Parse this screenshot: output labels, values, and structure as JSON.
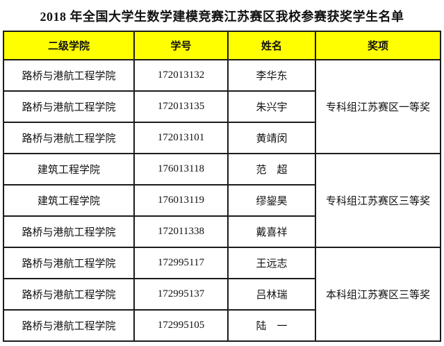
{
  "title": "2018 年全国大学生数学建模竞赛江苏赛区我校参赛获奖学生名单",
  "colors": {
    "header_bg": "#FFFF00",
    "border": "#1b1b1b",
    "text": "#111111"
  },
  "table": {
    "headers": [
      "二级学院",
      "学号",
      "姓名",
      "奖项"
    ],
    "rows": [
      {
        "college": "路桥与港航工程学院",
        "student_id": "172013132",
        "name": "李华东"
      },
      {
        "college": "路桥与港航工程学院",
        "student_id": "172013135",
        "name": "朱兴宇"
      },
      {
        "college": "路桥与港航工程学院",
        "student_id": "172013101",
        "name": "黄靖闵"
      },
      {
        "college": "建筑工程学院",
        "student_id": "176013118",
        "name": "范　超"
      },
      {
        "college": "建筑工程学院",
        "student_id": "176013119",
        "name": "缪鋆昊"
      },
      {
        "college": "路桥与港航工程学院",
        "student_id": "172011338",
        "name": "戴喜祥"
      },
      {
        "college": "路桥与港航工程学院",
        "student_id": "172995117",
        "name": "王远志"
      },
      {
        "college": "路桥与港航工程学院",
        "student_id": "172995137",
        "name": "吕林瑞"
      },
      {
        "college": "路桥与港航工程学院",
        "student_id": "172995105",
        "name": "陆　一"
      }
    ],
    "award_groups": [
      {
        "label": "专科组江苏赛区一等奖",
        "rowspan": 3
      },
      {
        "label": "专科组江苏赛区三等奖",
        "rowspan": 3
      },
      {
        "label": "本科组江苏赛区三等奖",
        "rowspan": 3
      }
    ]
  }
}
